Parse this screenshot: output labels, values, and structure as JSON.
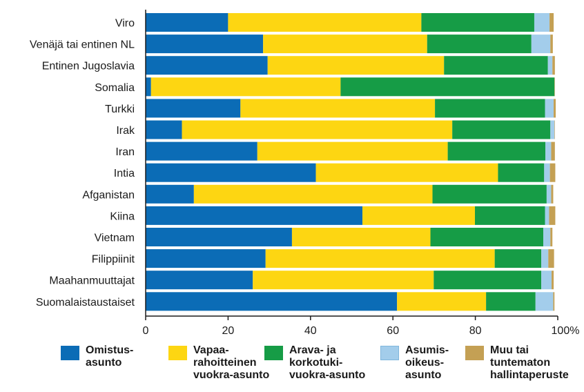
{
  "chart_data": {
    "type": "bar",
    "orientation": "horizontal",
    "stacked": true,
    "categories": [
      "Viro",
      "Venäjä tai entinen NL",
      "Entinen Jugoslavia",
      "Somalia",
      "Turkki",
      "Irak",
      "Iran",
      "Intia",
      "Afganistan",
      "Kiina",
      "Vietnam",
      "Filippiinit",
      "Maahanmuuttajat",
      "Suomalaistaustaiset"
    ],
    "series": [
      {
        "name": "Omistus-\nasunto",
        "color": "#0b6cb6",
        "values": [
          20.0,
          28.5,
          29.6,
          1.3,
          23.0,
          8.8,
          27.1,
          41.3,
          11.7,
          52.6,
          35.5,
          29.1,
          26.0,
          61.0
        ]
      },
      {
        "name": "Vapaa-\nrahoitteinen\nvuokra-asunto",
        "color": "#fdd612",
        "values": [
          46.9,
          39.8,
          42.8,
          46.0,
          47.2,
          65.6,
          46.2,
          44.2,
          57.9,
          27.3,
          33.6,
          55.6,
          43.9,
          21.6
        ]
      },
      {
        "name": "Arava- ja\nkorkotuki-\nvuokra-asunto",
        "color": "#169c46",
        "values": [
          27.4,
          25.3,
          25.2,
          51.9,
          26.7,
          23.8,
          23.7,
          11.2,
          27.7,
          17.0,
          27.4,
          11.3,
          26.1,
          12.0
        ]
      },
      {
        "name": "Asumis-\noikeus-\nasunto",
        "color": "#a3cdeb",
        "values": [
          3.7,
          4.6,
          1.1,
          0.0,
          2.1,
          1.0,
          1.4,
          1.4,
          1.1,
          1.0,
          1.7,
          1.7,
          2.5,
          4.3
        ]
      },
      {
        "name": "Muu tai\ntuntematon\nhallintaperuste",
        "color": "#c4a054",
        "values": [
          1.0,
          0.6,
          0.6,
          0.1,
          0.5,
          0.1,
          0.9,
          1.3,
          0.5,
          1.5,
          0.5,
          1.4,
          0.5,
          0.3
        ]
      }
    ],
    "xlim": [
      0,
      100
    ],
    "xticks": [
      "0",
      "20",
      "40",
      "60",
      "80",
      "100%"
    ],
    "legend_position": "bottom"
  }
}
